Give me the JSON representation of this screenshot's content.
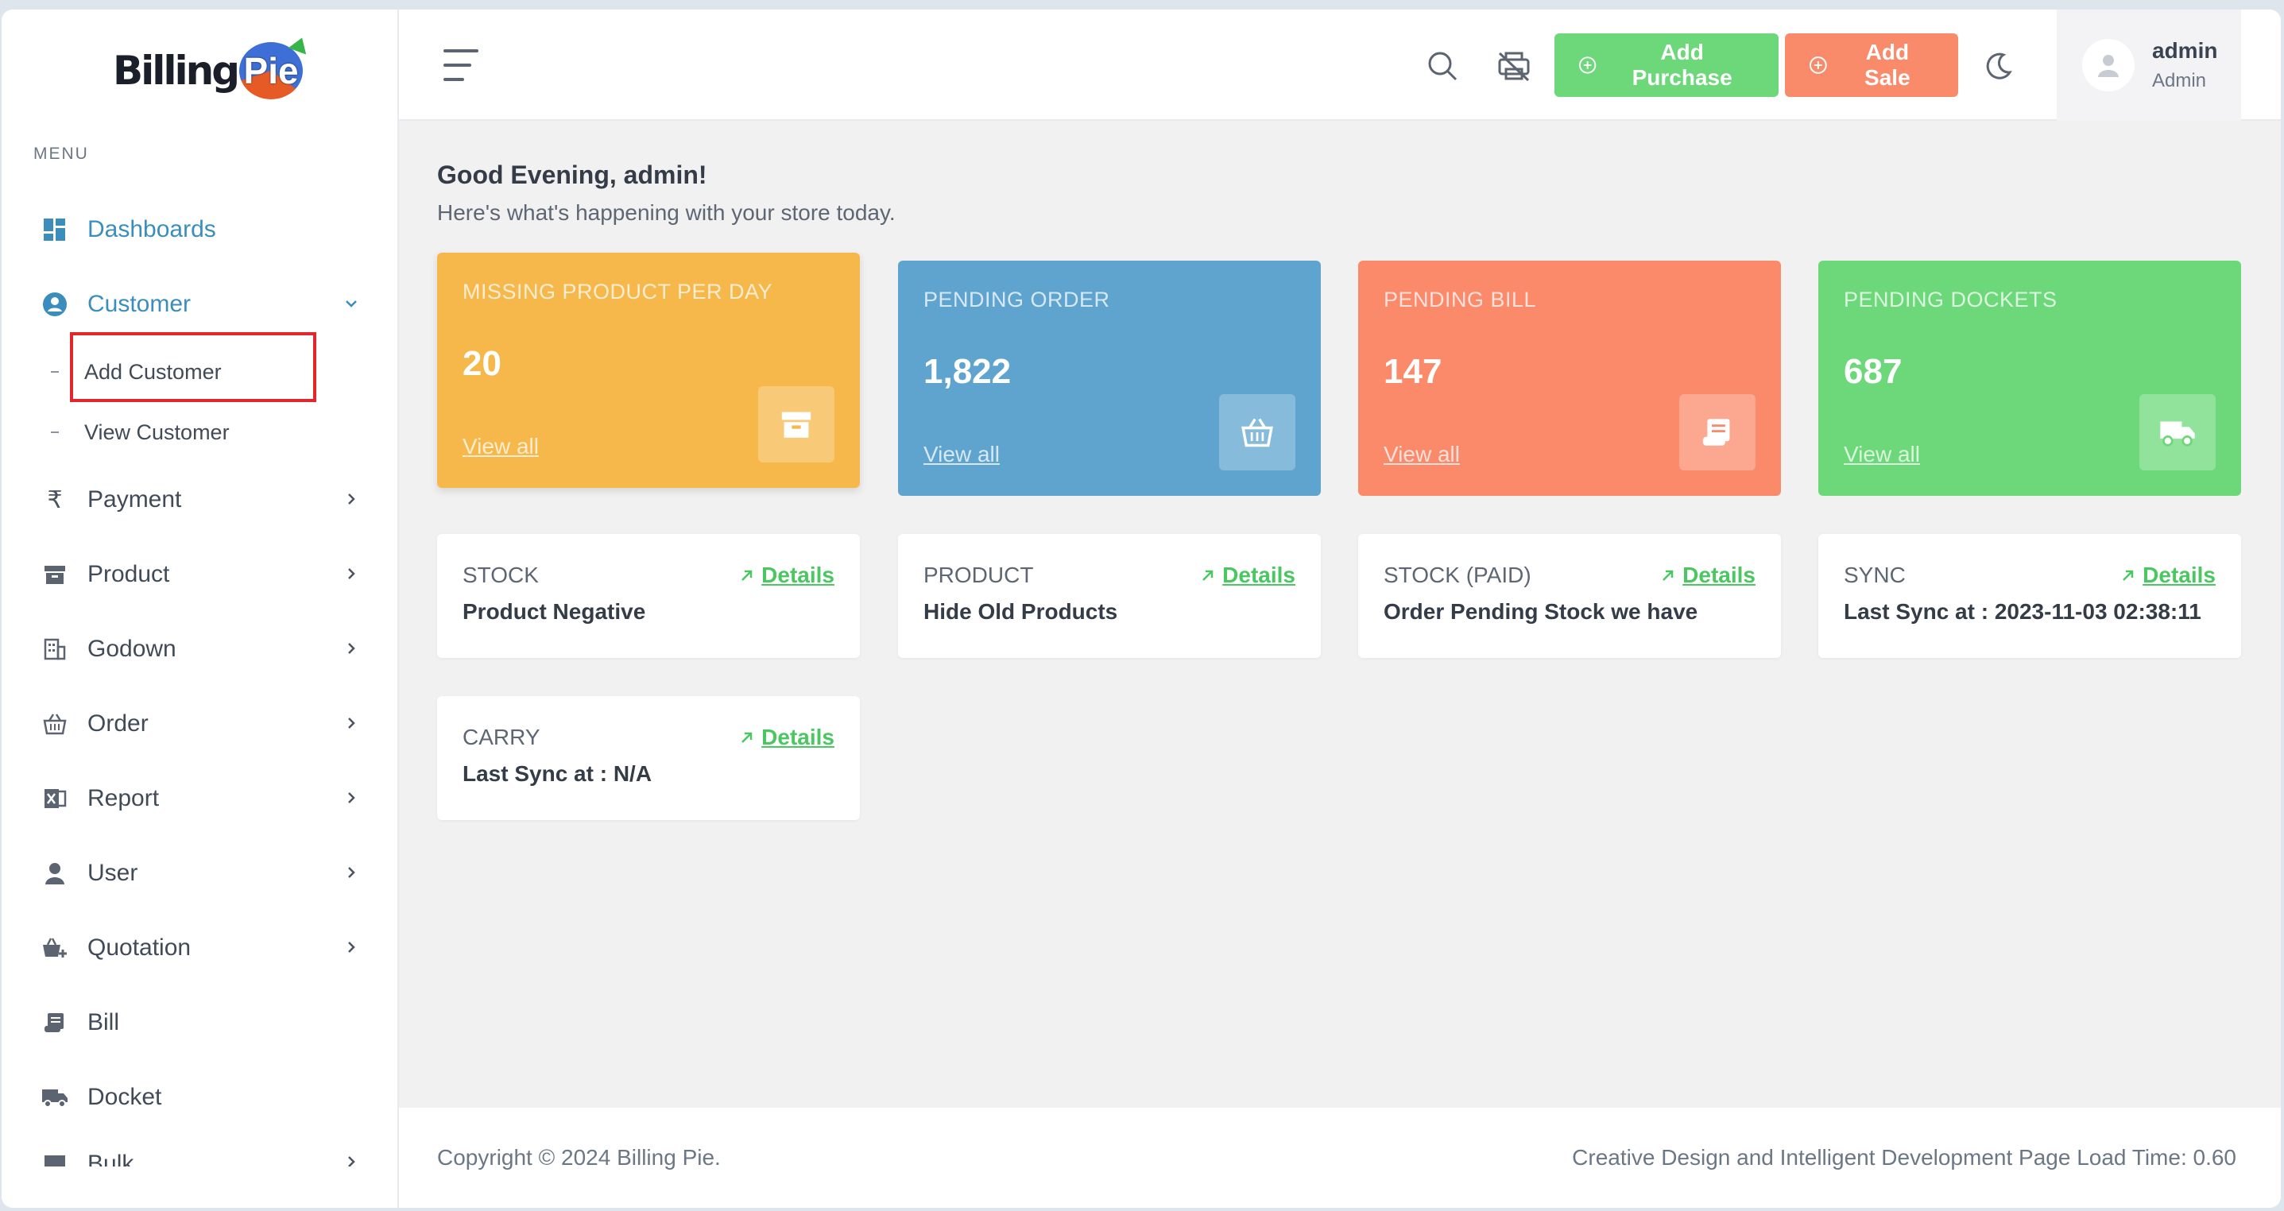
{
  "brand": {
    "logo_text": "Billing",
    "logo_pie": "Pie"
  },
  "sidebar": {
    "menu_title": "MENU",
    "items": [
      {
        "label": "Dashboards",
        "icon": "grid-icon"
      },
      {
        "label": "Customer",
        "icon": "user-circle-icon",
        "expanded": true
      },
      {
        "label": "Payment",
        "icon": "rupee-icon"
      },
      {
        "label": "Product",
        "icon": "archive-icon"
      },
      {
        "label": "Godown",
        "icon": "building-icon"
      },
      {
        "label": "Order",
        "icon": "basket-icon"
      },
      {
        "label": "Report",
        "icon": "excel-icon"
      },
      {
        "label": "User",
        "icon": "user-icon"
      },
      {
        "label": "Quotation",
        "icon": "cart-icon"
      },
      {
        "label": "Bill",
        "icon": "scroll-icon"
      },
      {
        "label": "Docket",
        "icon": "truck-icon"
      },
      {
        "label": "Bulk",
        "icon": "bulk-icon"
      }
    ],
    "customer_sub": [
      {
        "label": "Add Customer"
      },
      {
        "label": "View Customer"
      }
    ]
  },
  "topbar": {
    "add_purchase": "Add Purchase",
    "add_sale": "Add Sale",
    "user_name": "admin",
    "user_role": "Admin"
  },
  "main": {
    "greeting": "Good Evening, admin!",
    "subtitle": "Here's what's happening with your store today.",
    "stats": [
      {
        "label": "MISSING PRODUCT PER DAY",
        "value": "20",
        "link": "View all",
        "color": "#f6b84a"
      },
      {
        "label": "PENDING ORDER",
        "value": "1,822",
        "link": "View all",
        "color": "#5ea4cf"
      },
      {
        "label": "PENDING BILL",
        "value": "147",
        "link": "View all",
        "color": "#fb8a6b"
      },
      {
        "label": "PENDING DOCKETS",
        "value": "687",
        "link": "View all",
        "color": "#6dd87a"
      }
    ],
    "info_cards": [
      {
        "head": "STOCK",
        "link": "Details",
        "text": "Product Negative"
      },
      {
        "head": "PRODUCT",
        "link": "Details",
        "text": "Hide Old Products"
      },
      {
        "head": "STOCK (PAID)",
        "link": "Details",
        "text": "Order Pending Stock we have"
      },
      {
        "head": "SYNC",
        "link": "Details",
        "text": "Last Sync at : 2023-11-03 02:38:11"
      },
      {
        "head": "CARRY",
        "link": "Details",
        "text": "Last Sync at : N/A"
      }
    ]
  },
  "footer": {
    "copyright": "Copyright © 2024 Billing Pie.",
    "right": "Creative Design and Intelligent Development Page Load Time: 0.60"
  }
}
